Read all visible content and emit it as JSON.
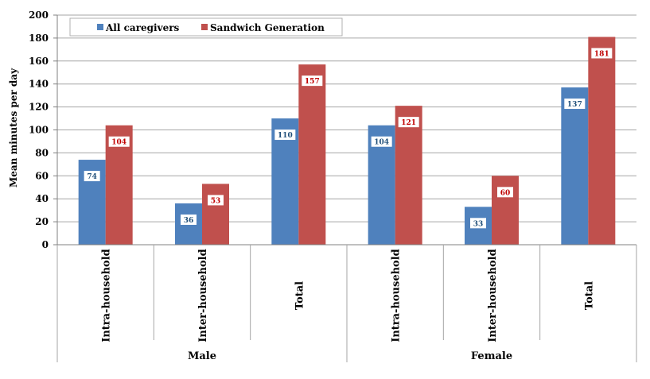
{
  "chart_data": {
    "type": "bar",
    "ylabel": "Mean minutes per day",
    "ylim": [
      0,
      200
    ],
    "yticks": [
      0,
      20,
      40,
      60,
      80,
      100,
      120,
      140,
      160,
      180,
      200
    ],
    "grid": true,
    "legend_position": "top-left",
    "groups": [
      {
        "label": "Male",
        "categories": [
          "Intra-household",
          "Inter-household",
          "Total"
        ]
      },
      {
        "label": "Female",
        "categories": [
          "Intra-household",
          "Inter-household",
          "Total"
        ]
      }
    ],
    "categories": [
      "Intra-household",
      "Inter-household",
      "Total",
      "Intra-household",
      "Inter-household",
      "Total"
    ],
    "series": [
      {
        "name": "All caregivers",
        "color": "#4f81bd",
        "values": [
          74,
          36,
          110,
          104,
          33,
          137
        ]
      },
      {
        "name": "Sandwich Generation",
        "color": "#c0504d",
        "values": [
          104,
          53,
          157,
          121,
          60,
          181
        ]
      }
    ]
  }
}
